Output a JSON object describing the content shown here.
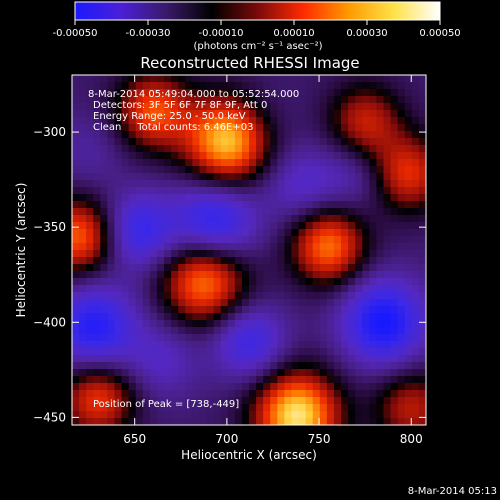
{
  "colorbar": {
    "ticks": [
      "-0.00050",
      "-0.00030",
      "-0.00010",
      "0.00010",
      "0.00030",
      "0.00050"
    ],
    "tick_values": [
      -0.0005,
      -0.0003,
      -0.0001,
      0.0001,
      0.0003,
      0.0005
    ],
    "range": [
      -0.0005,
      0.0005
    ],
    "units": "(photons cm⁻² s⁻¹ asec⁻²)",
    "gradient_colors": [
      "#1a1aff",
      "#4b1fd8",
      "#3a1a6a",
      "#000000",
      "#7a0a0a",
      "#ff2a00",
      "#ff9a00",
      "#ffe24a",
      "#ffffff"
    ]
  },
  "title": "Reconstructed RHESSI Image",
  "info": {
    "time_range": "8-Mar-2014 05:49:04.000 to 05:52:54.000",
    "detectors": "Detectors: 3F 5F 6F 7F 8F 9F, Att 0",
    "energy": "Energy Range: 25.0 - 50.0 keV",
    "clean": "Clean     Total counts: 6.46E+03"
  },
  "peak_label": "Position of Peak = [738,-449]",
  "timestamp": "8-Mar-2014 05:13",
  "chart_data": {
    "type": "heatmap",
    "title": "Reconstructed RHESSI Image",
    "xlabel": "Heliocentric X (arcsec)",
    "ylabel": "Heliocentric Y (arcsec)",
    "xlim": [
      616,
      808
    ],
    "ylim": [
      -454,
      -270
    ],
    "xticks": [
      650,
      700,
      750,
      800
    ],
    "yticks": [
      -300,
      -350,
      -400,
      -450
    ],
    "xtick_labels": [
      "650",
      "700",
      "750",
      "800"
    ],
    "ytick_labels": [
      "−300",
      "−350",
      "−400",
      "−450"
    ],
    "peak_position": [
      738,
      -449
    ],
    "colormap_range": [
      -0.0005,
      0.0005
    ],
    "blobs": [
      {
        "x": 700,
        "y": -305,
        "value": 0.00046
      },
      {
        "x": 660,
        "y": -289,
        "value": 0.0003
      },
      {
        "x": 775,
        "y": -295,
        "value": 0.00022
      },
      {
        "x": 798,
        "y": -322,
        "value": 0.00026
      },
      {
        "x": 755,
        "y": -360,
        "value": 0.00035
      },
      {
        "x": 620,
        "y": -355,
        "value": 0.00033
      },
      {
        "x": 688,
        "y": -378,
        "value": 0.00038
      },
      {
        "x": 630,
        "y": -440,
        "value": 0.00028
      },
      {
        "x": 738,
        "y": -449,
        "value": 0.0005
      },
      {
        "x": 800,
        "y": -445,
        "value": 0.0002
      },
      {
        "x": 693,
        "y": -348,
        "value": -0.0004
      },
      {
        "x": 652,
        "y": -352,
        "value": -0.00034
      },
      {
        "x": 740,
        "y": -328,
        "value": -0.00022
      },
      {
        "x": 770,
        "y": -322,
        "value": -0.00018
      },
      {
        "x": 628,
        "y": -403,
        "value": -0.0004
      },
      {
        "x": 712,
        "y": -410,
        "value": -0.00032
      },
      {
        "x": 785,
        "y": -400,
        "value": -0.00044
      },
      {
        "x": 665,
        "y": -420,
        "value": -0.0002
      },
      {
        "x": 720,
        "y": -292,
        "value": -0.0001
      },
      {
        "x": 625,
        "y": -310,
        "value": -0.00014
      }
    ]
  }
}
